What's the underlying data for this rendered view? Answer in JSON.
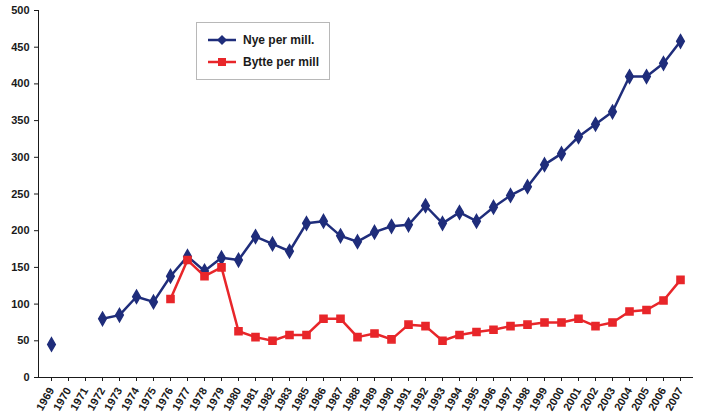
{
  "chart_data": {
    "type": "line",
    "categories": [
      "1969",
      "1970",
      "1971",
      "1972",
      "1973",
      "1974",
      "1975",
      "1976",
      "1977",
      "1978",
      "1979",
      "1980",
      "1981",
      "1982",
      "1983",
      "1985",
      "1986",
      "1987",
      "1988",
      "1989",
      "1990",
      "1991",
      "1992",
      "1993",
      "1994",
      "1995",
      "1996",
      "1997",
      "1998",
      "1999",
      "2000",
      "2001",
      "2002",
      "2003",
      "2004",
      "2005",
      "2006",
      "2007"
    ],
    "series": [
      {
        "name": "Nye per mill.",
        "color": "#1f2d7b",
        "marker": "diamond",
        "values": [
          45,
          null,
          null,
          80,
          85,
          110,
          103,
          138,
          165,
          145,
          163,
          160,
          192,
          182,
          172,
          210,
          213,
          193,
          185,
          198,
          206,
          208,
          234,
          210,
          225,
          213,
          232,
          248,
          260,
          290,
          305,
          328,
          345,
          362,
          410,
          410,
          428,
          458
        ]
      },
      {
        "name": "Bytte per mill",
        "color": "#e8262a",
        "marker": "square",
        "values": [
          null,
          null,
          null,
          null,
          null,
          null,
          null,
          107,
          160,
          138,
          150,
          63,
          55,
          50,
          58,
          58,
          80,
          80,
          55,
          60,
          52,
          72,
          70,
          50,
          58,
          62,
          65,
          70,
          72,
          75,
          75,
          80,
          70,
          75,
          90,
          92,
          105,
          133
        ]
      }
    ],
    "ylim": [
      0,
      500
    ],
    "yticks": [
      0,
      50,
      100,
      150,
      200,
      250,
      300,
      350,
      400,
      450,
      500
    ],
    "grid": false,
    "legend": "top-left"
  }
}
